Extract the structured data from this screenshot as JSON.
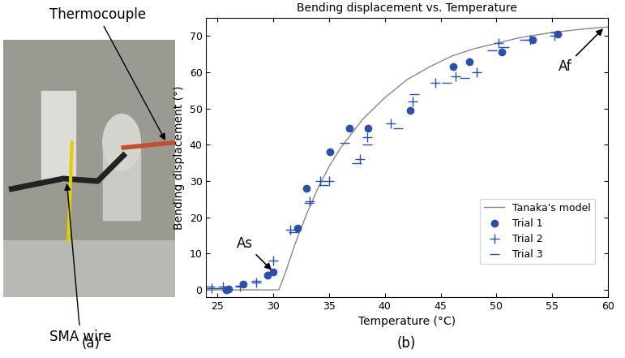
{
  "captions": [
    "(a)",
    "(b)"
  ],
  "photo": {
    "annotations": [
      "Thermocouple",
      "SMA wire"
    ]
  },
  "chart_data": {
    "type": "scatter",
    "title": "Bending displacement vs. Temperature",
    "x_label": "Temperature (°C)",
    "y_label": "Bending displacement (°)",
    "xlim": [
      24,
      60
    ],
    "xticks": [
      25,
      30,
      35,
      40,
      45,
      50,
      55,
      60
    ],
    "ylim": [
      -2,
      75
    ],
    "yticks": [
      0,
      10,
      20,
      30,
      40,
      50,
      60,
      70
    ],
    "grid": false,
    "legend": "lower right",
    "annotations": [
      {
        "text": "As",
        "x": 30,
        "y": 5
      },
      {
        "text": "Af",
        "x": 59.7,
        "y": 72.5
      }
    ],
    "series": [
      {
        "name": "Tanaka's model",
        "type": "line",
        "color": "#888888",
        "marker": "none",
        "line_style": "solid",
        "x": [
          24,
          30.5,
          31,
          32,
          33,
          34,
          35,
          36,
          37,
          38,
          40,
          42,
          44,
          46,
          48,
          50,
          52,
          55,
          58,
          60
        ],
        "values": [
          0,
          0,
          4,
          13,
          21,
          28,
          34,
          39,
          43,
          47,
          53,
          58,
          61.5,
          64.5,
          66.5,
          68,
          69.5,
          71,
          72,
          72.5
        ]
      },
      {
        "name": "Trial 1",
        "type": "scatter",
        "color": "#2b50a8",
        "marker": "circle",
        "line_style": "none",
        "x": [
          25.8,
          26,
          27.3,
          29.5,
          30,
          32.2,
          33,
          35.1,
          36.8,
          38.5,
          42.3,
          46.1,
          47.6,
          50.5,
          53.2,
          55.5
        ],
        "values": [
          0,
          0.2,
          1.5,
          4,
          5,
          17,
          28,
          38,
          44.5,
          44.5,
          49.5,
          61.5,
          63,
          65.5,
          69,
          70.5
        ]
      },
      {
        "name": "Trial 2",
        "type": "scatter",
        "color": "#2b50a8",
        "marker": "plus",
        "line_style": "none",
        "x": [
          24.5,
          25.5,
          27,
          28.5,
          30,
          31.5,
          33.3,
          34.2,
          35,
          37.8,
          38.4,
          40.5,
          42.5,
          44.5,
          46.3,
          48.2,
          50.2,
          53,
          55.2
        ],
        "values": [
          0.5,
          1,
          1,
          2,
          8,
          16.5,
          24.5,
          30,
          30,
          36,
          42,
          46,
          52,
          57,
          59,
          60,
          68,
          69,
          70
        ]
      },
      {
        "name": "Trial 3",
        "type": "scatter",
        "color": "#2b50a8",
        "marker": "dash",
        "line_style": "none",
        "x": [
          24.3,
          25.2,
          27,
          28.5,
          29.8,
          31.8,
          33.2,
          34.5,
          36.4,
          37.5,
          38.4,
          41.2,
          42.6,
          45.5,
          47.1,
          49.6,
          50.7,
          52.5,
          55.3
        ],
        "values": [
          1,
          0.5,
          1.2,
          2.5,
          5,
          16,
          24,
          29,
          40.5,
          35,
          40,
          44.5,
          54,
          57,
          58.5,
          66,
          67,
          69,
          71
        ]
      }
    ]
  }
}
